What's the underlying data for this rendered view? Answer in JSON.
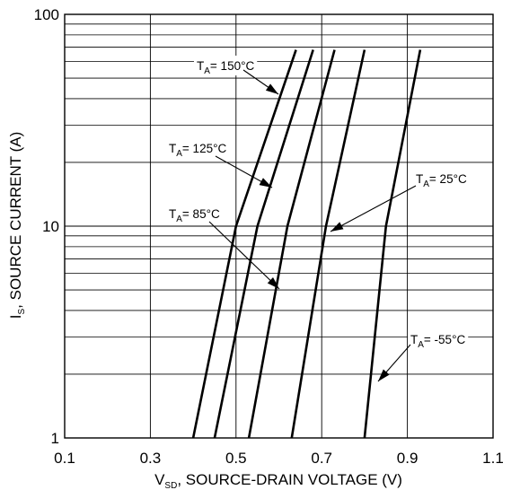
{
  "chart_data": {
    "type": "line",
    "xlabel_main": "V",
    "xlabel_sub": "SD",
    "xlabel_rest": ", SOURCE-DRAIN VOLTAGE (V)",
    "ylabel_main": "I",
    "ylabel_sub": "S",
    "ylabel_rest": ", SOURCE CURRENT (A)",
    "xlim": [
      0.1,
      1.1
    ],
    "ylim": [
      1,
      100
    ],
    "yscale": "log",
    "grid": true,
    "x_ticks": [
      "0.1",
      "0.3",
      "0.5",
      "0.7",
      "0.9",
      "1.1"
    ],
    "x_tick_values": [
      0.1,
      0.3,
      0.5,
      0.7,
      0.9,
      1.1
    ],
    "y_ticks": [
      "1",
      "10",
      "100"
    ],
    "y_tick_values": [
      1,
      10,
      100
    ],
    "series": [
      {
        "name": "150°C",
        "points": [
          [
            0.4,
            1
          ],
          [
            0.5,
            10
          ],
          [
            0.64,
            68
          ]
        ]
      },
      {
        "name": "125°C",
        "points": [
          [
            0.45,
            1
          ],
          [
            0.55,
            10
          ],
          [
            0.68,
            68
          ]
        ]
      },
      {
        "name": "85°C",
        "points": [
          [
            0.53,
            1
          ],
          [
            0.62,
            10
          ],
          [
            0.73,
            68
          ]
        ]
      },
      {
        "name": "25°C",
        "points": [
          [
            0.63,
            1
          ],
          [
            0.71,
            10
          ],
          [
            0.8,
            68
          ]
        ]
      },
      {
        "name": "-55°C",
        "points": [
          [
            0.8,
            1
          ],
          [
            0.85,
            10
          ],
          [
            0.93,
            68
          ]
        ]
      }
    ],
    "annotations": [
      {
        "T": "T",
        "sub": "A",
        "value": "= 150°C",
        "series": "150°C"
      },
      {
        "T": "T",
        "sub": "A",
        "value": "= 125°C",
        "series": "125°C"
      },
      {
        "T": "T",
        "sub": "A",
        "value": "= 85°C",
        "series": "85°C"
      },
      {
        "T": "T",
        "sub": "A",
        "value": "= 25°C",
        "series": "25°C"
      },
      {
        "T": "T",
        "sub": "A",
        "value": "= -55°C",
        "series": "-55°C"
      }
    ]
  }
}
